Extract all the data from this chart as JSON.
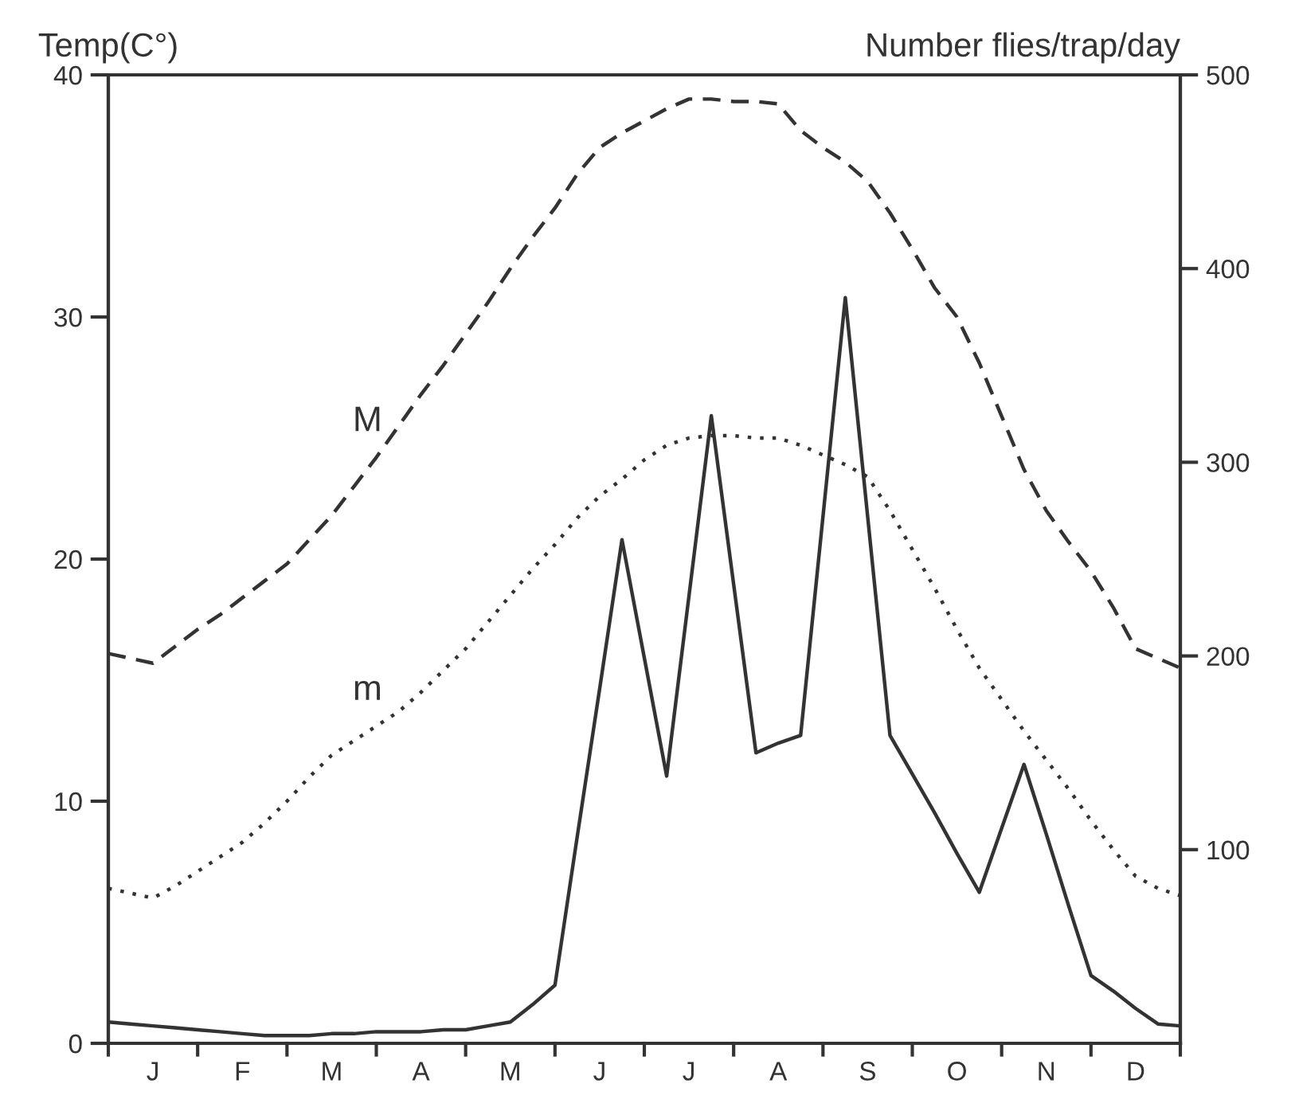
{
  "chart_data": {
    "type": "line",
    "ylabel": "Temp(C°)",
    "y2label": "Number flies/trap/day",
    "categories": [
      null,
      null,
      "J",
      null,
      null,
      null,
      "F",
      null,
      null,
      null,
      "M",
      null,
      null,
      null,
      "A",
      null,
      null,
      null,
      "M",
      null,
      null,
      null,
      "J",
      null,
      null,
      null,
      "J",
      null,
      null,
      null,
      "A",
      null,
      null,
      null,
      "S",
      null,
      null,
      null,
      "O",
      null,
      null,
      null,
      "N",
      null,
      null,
      null,
      "D",
      null,
      null
    ],
    "ylim": [
      0,
      40
    ],
    "yticks": [
      0,
      10,
      20,
      30,
      40
    ],
    "y2lim": [
      0,
      500
    ],
    "y2ticks": [
      100,
      200,
      300,
      400,
      500
    ],
    "grid": false,
    "legend": false,
    "marker": "none",
    "series": [
      {
        "name": "M",
        "color": "#333333",
        "line_style": "dashed",
        "values": [
          16.1,
          15.9,
          15.7,
          16.4,
          17.1,
          17.7,
          18.4,
          19.1,
          19.8,
          20.8,
          21.8,
          23.0,
          24.2,
          25.5,
          26.8,
          28.0,
          29.3,
          30.6,
          32.0,
          33.3,
          34.5,
          35.9,
          37.0,
          37.6,
          38.1,
          38.6,
          39.0,
          39.0,
          38.9,
          38.9,
          38.8,
          37.7,
          37.0,
          36.4,
          35.6,
          34.3,
          32.8,
          31.2,
          30.0,
          28.1,
          25.9,
          23.7,
          22.0,
          20.7,
          19.5,
          18.0,
          16.3,
          15.9,
          15.5
        ]
      },
      {
        "name": "m",
        "color": "#333333",
        "line_style": "dotted",
        "values": [
          6.4,
          6.2,
          6.0,
          6.5,
          7.1,
          7.7,
          8.3,
          9.1,
          10.0,
          11.0,
          11.9,
          12.5,
          13.1,
          13.7,
          14.5,
          15.4,
          16.3,
          17.4,
          18.5,
          19.6,
          20.6,
          21.7,
          22.6,
          23.3,
          24.1,
          24.7,
          25.0,
          25.1,
          25.1,
          25.0,
          25.0,
          24.7,
          24.3,
          23.9,
          23.4,
          22.0,
          20.4,
          18.8,
          17.1,
          15.5,
          14.2,
          12.9,
          11.7,
          10.5,
          9.2,
          8.0,
          6.9,
          6.4,
          6.1
        ]
      },
      {
        "color": "#333333",
        "line_style": "solid",
        "axis": "y2",
        "values": [
          11,
          10,
          9,
          8,
          7,
          6,
          5,
          4,
          4,
          4,
          5,
          5,
          6,
          6,
          6,
          7,
          7,
          9,
          11,
          20,
          30,
          107,
          183,
          260,
          199,
          138,
          231,
          324,
          237,
          150,
          155,
          159,
          272,
          385,
          272,
          159,
          139,
          119,
          98,
          78,
          111,
          144,
          108,
          71,
          35,
          27,
          18,
          10,
          9
        ]
      }
    ]
  }
}
